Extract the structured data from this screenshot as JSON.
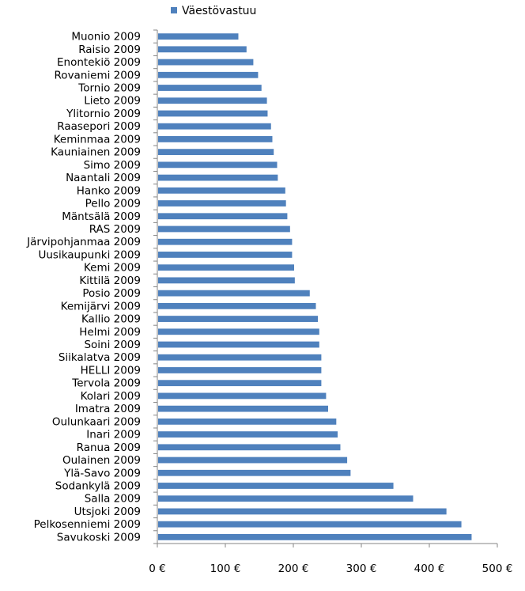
{
  "chart_data": {
    "type": "bar",
    "orientation": "horizontal",
    "categories": [
      "Muonio 2009",
      "Raisio 2009",
      "Enontekiö 2009",
      "Rovaniemi 2009",
      "Tornio 2009",
      "Lieto 2009",
      "Ylitornio 2009",
      "Raasepori 2009",
      "Keminmaa 2009",
      "Kauniainen 2009",
      "Simo 2009",
      "Naantali 2009",
      "Hanko 2009",
      "Pello 2009",
      "Mäntsälä 2009",
      "RAS 2009",
      "Järvipohjanmaa 2009",
      "Uusikaupunki 2009",
      "Kemi 2009",
      "Kittilä 2009",
      "Posio 2009",
      "Kemijärvi 2009",
      "Kallio 2009",
      "Helmi 2009",
      "Soini 2009",
      "Siikalatva 2009",
      "HELLI 2009",
      "Tervola 2009",
      "Kolari 2009",
      "Imatra 2009",
      "Oulunkaari 2009",
      "Inari 2009",
      "Ranua 2009",
      "Oulainen 2009",
      "Ylä-Savo 2009",
      "Sodankylä 2009",
      "Salla 2009",
      "Utsjoki 2009",
      "Pelkosenniemi 2009",
      "Savukoski 2009"
    ],
    "series": [
      {
        "name": "Väestövastuu",
        "color": "#4F81BD",
        "values": [
          118,
          130,
          140,
          147,
          152,
          160,
          161,
          166,
          168,
          170,
          175,
          176,
          187,
          188,
          190,
          194,
          197,
          197,
          200,
          201,
          223,
          232,
          235,
          237,
          237,
          240,
          240,
          240,
          247,
          250,
          262,
          264,
          268,
          278,
          283,
          346,
          375,
          424,
          446,
          461
        ]
      }
    ],
    "x_ticks": [
      "0 €",
      "100 €",
      "200 €",
      "300 €",
      "400 €",
      "500 €"
    ],
    "xlim": [
      0,
      500
    ],
    "legend": {
      "position": "top",
      "label": "Väestövastuu"
    },
    "grid": false
  }
}
